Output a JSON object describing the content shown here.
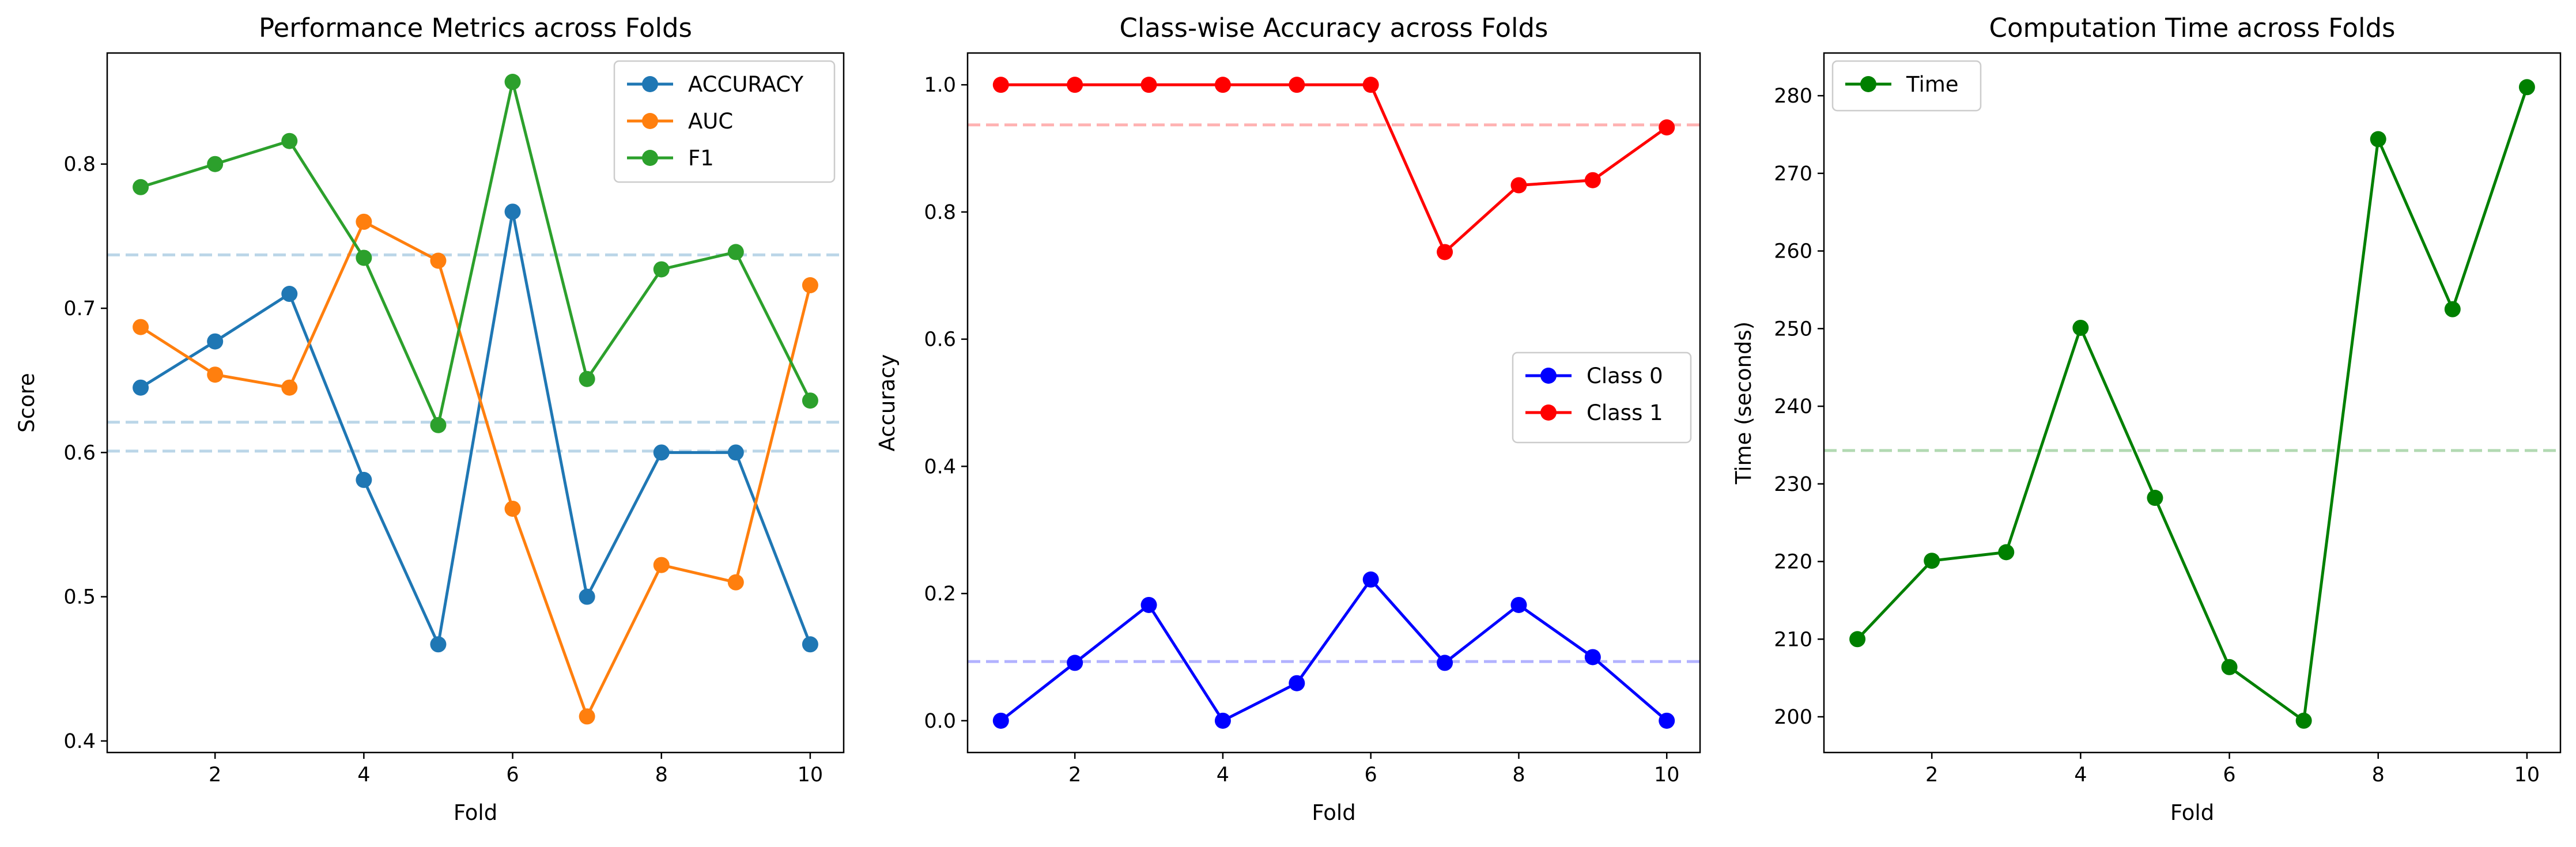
{
  "chart_data": [
    {
      "type": "line",
      "title": "Performance Metrics across Folds",
      "xlabel": "Fold",
      "ylabel": "Score",
      "x": [
        1,
        2,
        3,
        4,
        5,
        6,
        7,
        8,
        9,
        10
      ],
      "xlim": [
        0.55,
        10.45
      ],
      "ylim": [
        0.392,
        0.877
      ],
      "xticks": [
        2,
        4,
        6,
        8,
        10
      ],
      "yticks": [
        0.4,
        0.5,
        0.6,
        0.7,
        0.8
      ],
      "ytick_labels": [
        "0.4",
        "0.5",
        "0.6",
        "0.7",
        "0.8"
      ],
      "legend_position": "top-right",
      "series": [
        {
          "name": "ACCURACY",
          "color": "#1f77b4",
          "values": [
            0.645,
            0.677,
            0.71,
            0.581,
            0.467,
            0.767,
            0.5,
            0.6,
            0.6,
            0.467
          ]
        },
        {
          "name": "AUC",
          "color": "#ff7f0e",
          "values": [
            0.687,
            0.654,
            0.645,
            0.76,
            0.733,
            0.561,
            0.417,
            0.522,
            0.51,
            0.716
          ]
        },
        {
          "name": "F1",
          "color": "#2ca02c",
          "values": [
            0.784,
            0.8,
            0.816,
            0.735,
            0.619,
            0.857,
            0.651,
            0.727,
            0.739,
            0.636
          ]
        }
      ],
      "reference_lines": [
        {
          "y": 0.737,
          "color": "#1f77b4"
        },
        {
          "y": 0.621,
          "color": "#1f77b4"
        },
        {
          "y": 0.601,
          "color": "#1f77b4"
        }
      ]
    },
    {
      "type": "line",
      "title": "Class-wise Accuracy across Folds",
      "xlabel": "Fold",
      "ylabel": "Accuracy",
      "x": [
        1,
        2,
        3,
        4,
        5,
        6,
        7,
        8,
        9,
        10
      ],
      "xlim": [
        0.55,
        10.45
      ],
      "ylim": [
        -0.05,
        1.05
      ],
      "xticks": [
        2,
        4,
        6,
        8,
        10
      ],
      "yticks": [
        0.0,
        0.2,
        0.4,
        0.6,
        0.8,
        1.0
      ],
      "ytick_labels": [
        "0.0",
        "0.2",
        "0.4",
        "0.6",
        "0.8",
        "1.0"
      ],
      "legend_position": "center-right",
      "series": [
        {
          "name": "Class 0",
          "color": "#0000ff",
          "values": [
            0.0,
            0.091,
            0.182,
            0.0,
            0.059,
            0.222,
            0.091,
            0.182,
            0.1,
            0.0
          ]
        },
        {
          "name": "Class 1",
          "color": "#ff0000",
          "values": [
            1.0,
            1.0,
            1.0,
            1.0,
            1.0,
            1.0,
            0.737,
            0.842,
            0.85,
            0.933
          ]
        }
      ],
      "reference_lines": [
        {
          "y": 0.937,
          "color": "#ff0000"
        },
        {
          "y": 0.093,
          "color": "#0000ff"
        }
      ]
    },
    {
      "type": "line",
      "title": "Computation Time across Folds",
      "xlabel": "Fold",
      "ylabel": "Time (seconds)",
      "x": [
        1,
        2,
        3,
        4,
        5,
        6,
        7,
        8,
        9,
        10
      ],
      "xlim": [
        0.55,
        10.45
      ],
      "ylim": [
        195.4,
        285.5
      ],
      "xticks": [
        2,
        4,
        6,
        8,
        10
      ],
      "yticks": [
        200,
        210,
        220,
        230,
        240,
        250,
        260,
        270,
        280
      ],
      "ytick_labels": [
        "200",
        "210",
        "220",
        "230",
        "240",
        "250",
        "260",
        "270",
        "280"
      ],
      "legend_position": "top-left",
      "series": [
        {
          "name": "Time",
          "color": "#008000",
          "values": [
            210.0,
            220.1,
            221.2,
            250.1,
            228.2,
            206.4,
            199.5,
            274.4,
            252.5,
            281.1
          ]
        }
      ],
      "reference_lines": [
        {
          "y": 234.3,
          "color": "#008000"
        }
      ]
    }
  ]
}
